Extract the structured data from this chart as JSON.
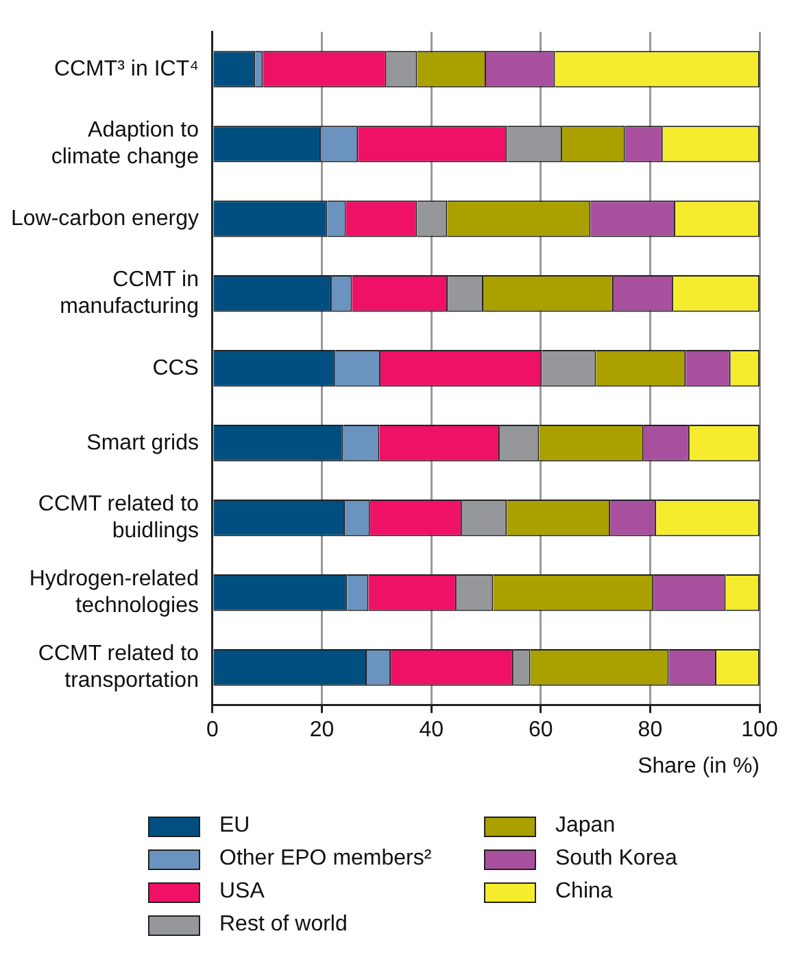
{
  "chart_data": {
    "type": "bar",
    "orientation": "horizontal",
    "stacked": true,
    "categories": [
      "CCMT³ in ICT⁴",
      "Adaption to\nclimate change",
      "Low-carbon energy",
      "CCMT in\nmanufacturing",
      "CCS",
      "Smart grids",
      "CCMT related to\nbuidlings",
      "Hydrogen-related\ntechnologies",
      "CCMT related to\ntransportation"
    ],
    "series": [
      {
        "name": "EU",
        "color": "#004f80",
        "values": [
          7.8,
          19.8,
          21.0,
          21.8,
          22.5,
          23.9,
          24.2,
          24.6,
          28.2
        ]
      },
      {
        "name": "Other EPO members²",
        "color": "#6a93bf",
        "values": [
          1.4,
          6.8,
          3.4,
          3.7,
          8.2,
          6.6,
          4.6,
          3.9,
          4.4
        ]
      },
      {
        "name": "USA",
        "color": "#ee1166",
        "values": [
          22.6,
          27.2,
          13.0,
          17.5,
          29.5,
          22.0,
          16.8,
          16.1,
          22.4
        ]
      },
      {
        "name": "Rest of world",
        "color": "#96979b",
        "values": [
          5.6,
          10.1,
          5.5,
          6.5,
          9.9,
          7.2,
          8.2,
          6.7,
          3.1
        ]
      },
      {
        "name": "Japan",
        "color": "#aaa000",
        "values": [
          12.6,
          11.5,
          26.2,
          23.8,
          16.4,
          19.1,
          18.9,
          29.3,
          25.3
        ]
      },
      {
        "name": "South Korea",
        "color": "#a8509e",
        "values": [
          12.6,
          6.9,
          15.5,
          10.9,
          8.2,
          8.4,
          8.4,
          13.2,
          8.7
        ]
      },
      {
        "name": "China",
        "color": "#f5ec2e",
        "values": [
          37.4,
          17.7,
          15.4,
          15.8,
          5.3,
          12.8,
          18.9,
          6.2,
          7.9
        ]
      }
    ],
    "xlabel": "Share (in %)",
    "xlim": [
      0,
      100
    ],
    "xticks": [
      0,
      20,
      40,
      60,
      80,
      100
    ],
    "grid": "x",
    "legend": "bottom"
  }
}
